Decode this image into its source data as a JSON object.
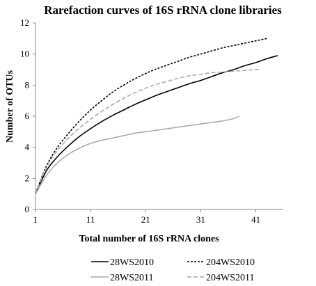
{
  "chart_data": {
    "type": "line",
    "title": "Rarefaction curves of 16S rRNA clone libraries",
    "xlabel": "Total number of 16S rRNA clones",
    "ylabel": "Number of OTUs",
    "xlim": [
      1,
      46
    ],
    "ylim": [
      0,
      12
    ],
    "xticks": [
      1,
      11,
      21,
      31,
      41
    ],
    "yticks": [
      0,
      2,
      4,
      6,
      8,
      10,
      12
    ],
    "grid": false,
    "legend_position": "bottom",
    "series": [
      {
        "name": "28WS2010",
        "color": "#000000",
        "dash": "solid",
        "x": [
          1,
          3,
          5,
          7,
          9,
          11,
          13,
          15,
          17,
          19,
          21,
          23,
          25,
          27,
          29,
          31,
          33,
          35,
          37,
          39,
          41,
          43,
          45
        ],
        "y": [
          1.0,
          2.5,
          3.4,
          4.1,
          4.7,
          5.2,
          5.65,
          6.05,
          6.4,
          6.75,
          7.05,
          7.35,
          7.6,
          7.85,
          8.1,
          8.3,
          8.55,
          8.8,
          9.0,
          9.25,
          9.45,
          9.7,
          9.9
        ]
      },
      {
        "name": "204WS2010",
        "color": "#000000",
        "dash": "short-dash",
        "x": [
          1,
          3,
          5,
          7,
          9,
          11,
          13,
          15,
          17,
          19,
          21,
          23,
          25,
          27,
          29,
          31,
          33,
          35,
          37,
          39,
          41,
          43
        ],
        "y": [
          1.0,
          2.8,
          4.0,
          4.9,
          5.7,
          6.4,
          7.0,
          7.55,
          8.0,
          8.4,
          8.75,
          9.05,
          9.3,
          9.55,
          9.8,
          10.0,
          10.2,
          10.4,
          10.55,
          10.7,
          10.85,
          11.0
        ]
      },
      {
        "name": "28WS2011",
        "color": "#a6a6a6",
        "dash": "solid",
        "x": [
          1,
          3,
          5,
          7,
          9,
          11,
          13,
          15,
          17,
          19,
          21,
          23,
          25,
          27,
          29,
          31,
          33,
          35,
          37,
          38
        ],
        "y": [
          1.0,
          2.2,
          3.0,
          3.55,
          3.95,
          4.25,
          4.45,
          4.6,
          4.75,
          4.9,
          5.0,
          5.1,
          5.2,
          5.3,
          5.4,
          5.5,
          5.6,
          5.7,
          5.85,
          6.0
        ]
      },
      {
        "name": "204WS2011",
        "color": "#a6a6a6",
        "dash": "long-dash",
        "x": [
          1,
          3,
          5,
          7,
          9,
          11,
          13,
          15,
          17,
          19,
          21,
          23,
          25,
          27,
          29,
          31,
          33,
          35,
          37,
          39,
          41,
          42
        ],
        "y": [
          1.0,
          2.7,
          3.8,
          4.6,
          5.25,
          5.8,
          6.3,
          6.75,
          7.15,
          7.5,
          7.8,
          8.05,
          8.25,
          8.45,
          8.6,
          8.7,
          8.8,
          8.85,
          8.9,
          8.95,
          9.0,
          9.0
        ]
      }
    ]
  }
}
